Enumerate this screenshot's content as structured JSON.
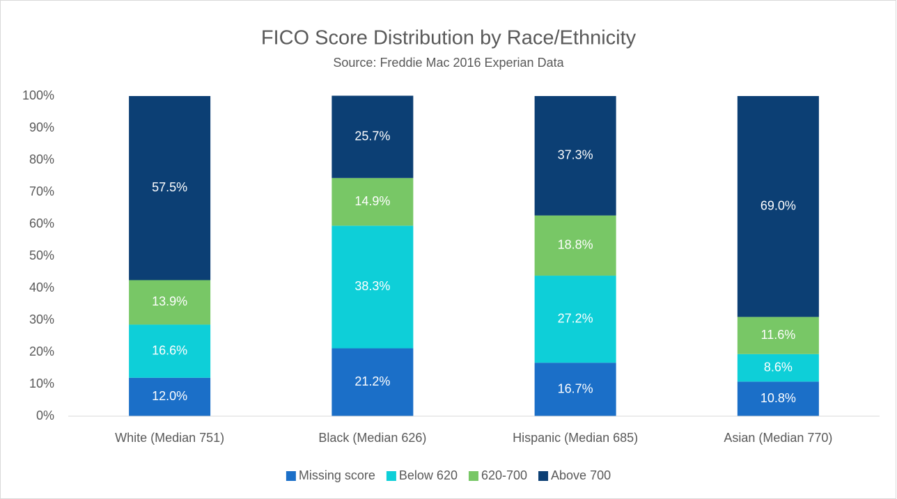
{
  "chart_data": {
    "type": "bar",
    "stacked": true,
    "title": "FICO Score Distribution by Race/Ethnicity",
    "subtitle": "Source: Freddie Mac 2016 Experian Data",
    "categories": [
      "White (Median 751)",
      "Black (Median 626)",
      "Hispanic (Median 685)",
      "Asian (Median 770)"
    ],
    "series": [
      {
        "name": "Missing score",
        "color": "#1b6fc8",
        "values": [
          12.0,
          21.2,
          16.7,
          10.8
        ],
        "value_labels": [
          "12.0%",
          "21.2%",
          "16.7%",
          "10.8%"
        ]
      },
      {
        "name": "Below 620",
        "color": "#0ecfd8",
        "values": [
          16.6,
          38.3,
          27.2,
          8.6
        ],
        "value_labels": [
          "16.6%",
          "38.3%",
          "27.2%",
          "8.6%"
        ]
      },
      {
        "name": "620-700",
        "color": "#78c766",
        "values": [
          13.9,
          14.9,
          18.8,
          11.6
        ],
        "value_labels": [
          "13.9%",
          "14.9%",
          "18.8%",
          "11.6%"
        ]
      },
      {
        "name": "Above 700",
        "color": "#0c3f74",
        "values": [
          57.5,
          25.7,
          37.3,
          69.0
        ],
        "value_labels": [
          "57.5%",
          "25.7%",
          "37.3%",
          "69.0%"
        ]
      }
    ],
    "ylim": [
      0,
      100
    ],
    "yticks": [
      {
        "value": 0,
        "label": "0%"
      },
      {
        "value": 10,
        "label": "10%"
      },
      {
        "value": 20,
        "label": "20%"
      },
      {
        "value": 30,
        "label": "30%"
      },
      {
        "value": 40,
        "label": "40%"
      },
      {
        "value": 50,
        "label": "50%"
      },
      {
        "value": 60,
        "label": "60%"
      },
      {
        "value": 70,
        "label": "70%"
      },
      {
        "value": 80,
        "label": "80%"
      },
      {
        "value": 90,
        "label": "90%"
      },
      {
        "value": 100,
        "label": "100%"
      }
    ],
    "grid": false,
    "legend": "bottom"
  }
}
